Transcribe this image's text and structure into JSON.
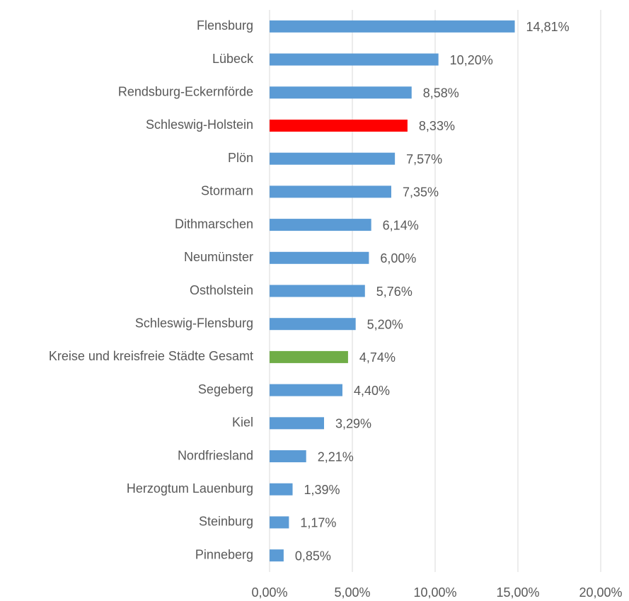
{
  "chart_data": {
    "type": "hbar",
    "categories": [
      "Flensburg",
      "Lübeck",
      "Rendsburg-Eckernförde",
      "Schleswig-Holstein",
      "Plön",
      "Stormarn",
      "Dithmarschen",
      "Neumünster",
      "Ostholstein",
      "Schleswig-Flensburg",
      "Kreise und kreisfreie Städte Gesamt",
      "Segeberg",
      "Kiel",
      "Nordfriesland",
      "Herzogtum Lauenburg",
      "Steinburg",
      "Pinneberg"
    ],
    "values": [
      14.81,
      10.2,
      8.58,
      8.33,
      7.57,
      7.35,
      6.14,
      6.0,
      5.76,
      5.2,
      4.74,
      4.4,
      3.29,
      2.21,
      1.39,
      1.17,
      0.85
    ],
    "value_labels": [
      "14,81%",
      "10,20%",
      "8,58%",
      "8,33%",
      "7,57%",
      "7,35%",
      "6,14%",
      "6,00%",
      "5,76%",
      "5,20%",
      "4,74%",
      "4,40%",
      "3,29%",
      "2,21%",
      "1,39%",
      "1,17%",
      "0,85%"
    ],
    "colors": [
      "#5b9bd5",
      "#5b9bd5",
      "#5b9bd5",
      "#ff0000",
      "#5b9bd5",
      "#5b9bd5",
      "#5b9bd5",
      "#5b9bd5",
      "#5b9bd5",
      "#5b9bd5",
      "#70ad47",
      "#5b9bd5",
      "#5b9bd5",
      "#5b9bd5",
      "#5b9bd5",
      "#5b9bd5",
      "#5b9bd5"
    ],
    "xlim": [
      0,
      20
    ],
    "xticks": [
      {
        "value": 0,
        "label": "0,00%"
      },
      {
        "value": 5,
        "label": "5,00%"
      },
      {
        "value": 10,
        "label": "10,00%"
      },
      {
        "value": 15,
        "label": "15,00%"
      },
      {
        "value": 20,
        "label": "20,00%"
      }
    ],
    "grid": true
  }
}
